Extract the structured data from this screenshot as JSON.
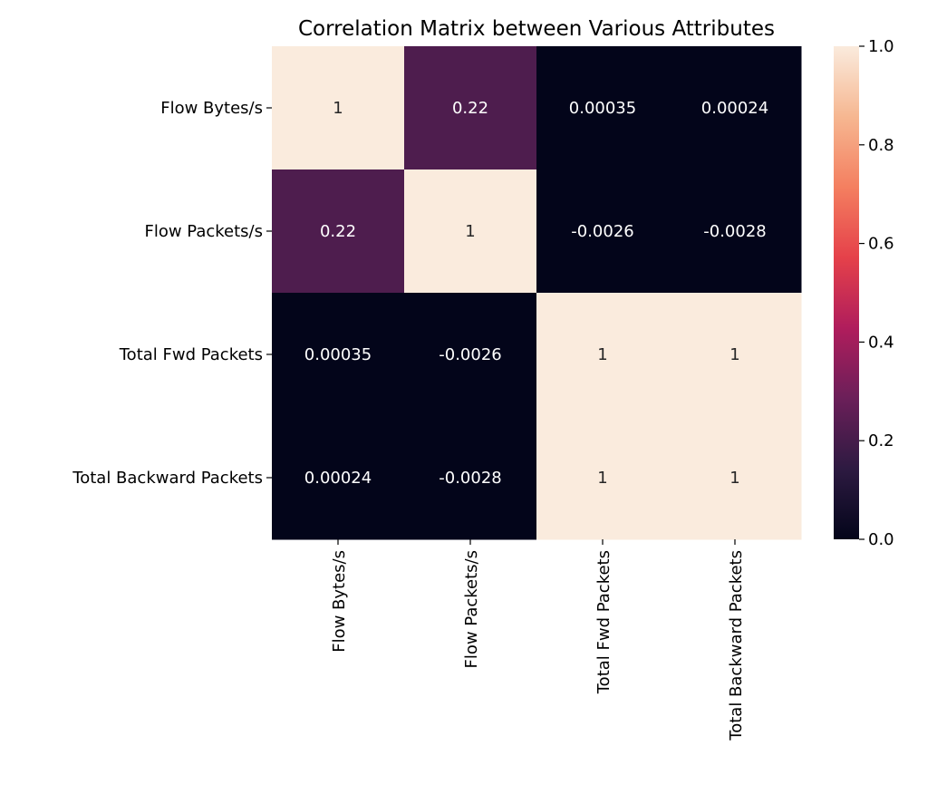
{
  "chart_data": {
    "type": "heatmap",
    "title": "Correlation Matrix between Various Attributes",
    "rows": [
      "Flow Bytes/s",
      "Flow Packets/s",
      "Total Fwd Packets",
      "Total Backward Packets"
    ],
    "columns": [
      "Flow Bytes/s",
      "Flow Packets/s",
      "Total Fwd Packets",
      "Total Backward Packets"
    ],
    "values": [
      [
        1,
        0.22,
        0.00035,
        0.00024
      ],
      [
        0.22,
        1,
        -0.0026,
        -0.0028
      ],
      [
        0.00035,
        -0.0026,
        1,
        1
      ],
      [
        0.00024,
        -0.0028,
        1,
        1
      ]
    ],
    "annotations": [
      [
        "1",
        "0.22",
        "0.00035",
        "0.00024"
      ],
      [
        "0.22",
        "1",
        "-0.0026",
        "-0.0028"
      ],
      [
        "0.00035",
        "-0.0026",
        "1",
        "1"
      ],
      [
        "0.00024",
        "-0.0028",
        "1",
        "1"
      ]
    ],
    "colorbar": {
      "range": [
        0.0,
        1.0
      ],
      "ticks": [
        "0.0",
        "0.2",
        "0.4",
        "0.6",
        "0.8",
        "1.0"
      ],
      "colormap": "rocket",
      "colors": [
        "#03051a",
        "#2d1a41",
        "#6b1f59",
        "#b01d5c",
        "#e5414a",
        "#f47f60",
        "#f6b791",
        "#faebdd"
      ]
    }
  }
}
